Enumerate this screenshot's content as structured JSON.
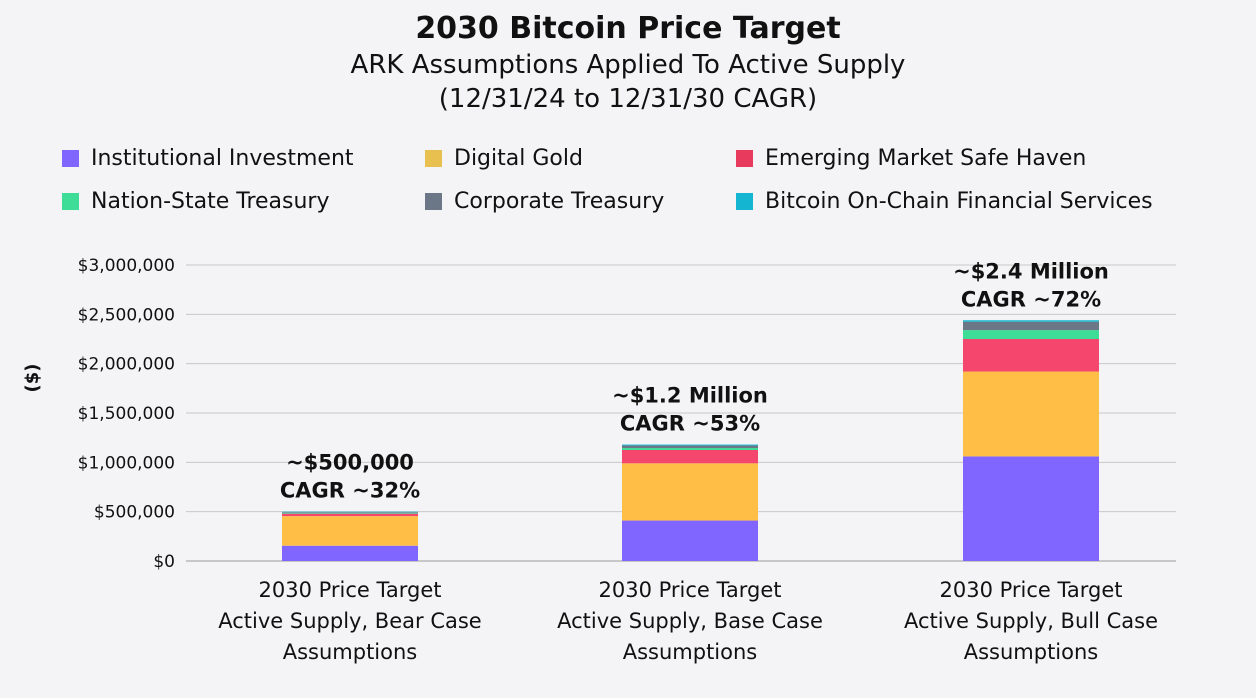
{
  "chart_data": {
    "type": "bar",
    "stacked": true,
    "title": "2030 Bitcoin Price Target",
    "subtitle_lines": [
      "ARK Assumptions Applied To Active Supply",
      "(12/31/24 to 12/31/30 CAGR)"
    ],
    "ylabel": "($)",
    "ylim": [
      0,
      3000000
    ],
    "yticks": [
      0,
      500000,
      1000000,
      1500000,
      2000000,
      2500000,
      3000000
    ],
    "ytick_labels": [
      "$0",
      "$500,000",
      "$1,000,000",
      "$1,500,000",
      "$2,000,000",
      "$2,500,000",
      "$3,000,000"
    ],
    "grid": true,
    "categories": [
      [
        "2030 Price Target",
        "Active Supply, Bear Case",
        "Assumptions"
      ],
      [
        "2030 Price Target",
        "Active Supply, Base Case",
        "Assumptions"
      ],
      [
        "2030 Price Target",
        "Active Supply, Bull Case",
        "Assumptions"
      ]
    ],
    "series": [
      {
        "name": "Institutional Investment",
        "color": "#8066ff",
        "values": [
          155000,
          410000,
          1060000
        ]
      },
      {
        "name": "Digital Gold",
        "color": "#ffbf47",
        "values": [
          300000,
          580000,
          860000
        ]
      },
      {
        "name": "Emerging Market Safe Haven",
        "color": "#f5476d",
        "values": [
          25000,
          135000,
          330000
        ]
      },
      {
        "name": "Nation-State Treasury",
        "color": "#3ddc97",
        "values": [
          8000,
          20000,
          90000
        ]
      },
      {
        "name": "Corporate Treasury",
        "color": "#6b7686",
        "values": [
          7000,
          25000,
          85000
        ]
      },
      {
        "name": "Bitcoin On-Chain Financial Services",
        "color": "#14b5d0",
        "values": [
          5000,
          10000,
          15000
        ]
      }
    ],
    "legend_order": [
      "Institutional Investment",
      "Digital Gold",
      "Emerging Market Safe Haven",
      "Nation-State Treasury",
      "Corporate Treasury",
      "Bitcoin On-Chain Financial Services"
    ],
    "annotations": [
      [
        "~$500,000",
        "CAGR ~32%"
      ],
      [
        "~$1.2 Million",
        "CAGR ~53%"
      ],
      [
        "~$2.4 Million",
        "CAGR ~72%"
      ]
    ]
  }
}
